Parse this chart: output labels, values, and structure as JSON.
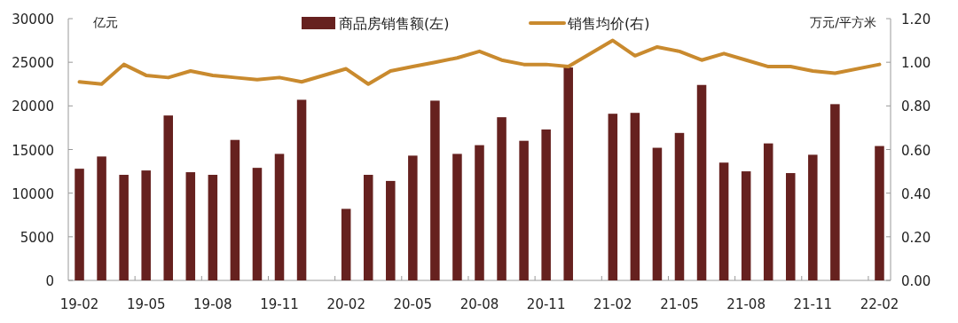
{
  "chart_data": {
    "type": "bar",
    "categories": [
      "19-02",
      null,
      null,
      "19-05",
      null,
      null,
      "19-08",
      null,
      null,
      "19-11",
      null,
      null,
      "20-02",
      null,
      null,
      "20-05",
      null,
      null,
      "20-08",
      null,
      null,
      "20-11",
      null,
      null,
      "21-02",
      null,
      null,
      "21-05",
      null,
      null,
      "21-08",
      null,
      null,
      "21-11",
      null,
      null,
      "22-02"
    ],
    "ylabel": "亿元",
    "y2label": "万元/平方米",
    "ylim": [
      0,
      30000
    ],
    "yticks": [
      0,
      5000,
      10000,
      15000,
      20000,
      25000,
      30000
    ],
    "y2lim": [
      0,
      1.2
    ],
    "y2ticks": [
      {
        "value": 0,
        "label": "0.00"
      },
      {
        "value": 0.2,
        "label": "0.20"
      },
      {
        "value": 0.4,
        "label": "0.40"
      },
      {
        "value": 0.6,
        "label": "0.60"
      },
      {
        "value": 0.8,
        "label": "0.80"
      },
      {
        "value": 1.0,
        "label": "1.00"
      },
      {
        "value": 1.2,
        "label": "1.20"
      }
    ],
    "legend": "top",
    "grid": false,
    "series": [
      {
        "name": "商品房销售额(左)",
        "color": "#66211f",
        "values": [
          12800,
          14200,
          12100,
          12600,
          18900,
          12400,
          12100,
          16100,
          12900,
          14500,
          20700,
          null,
          8200,
          12100,
          11400,
          14300,
          20600,
          14500,
          15500,
          18700,
          16000,
          17300,
          24400,
          null,
          19100,
          19200,
          15200,
          16900,
          22400,
          13500,
          12500,
          15700,
          12300,
          14400,
          20200,
          null,
          15400
        ]
      },
      {
        "name": "销售均价(右)",
        "type": "line",
        "axis": "y2",
        "color": "#c98a2e",
        "values": [
          0.91,
          0.9,
          0.99,
          0.94,
          0.93,
          0.96,
          0.94,
          0.93,
          0.92,
          0.93,
          0.91,
          null,
          0.97,
          0.9,
          0.96,
          0.98,
          1.0,
          1.02,
          1.05,
          1.01,
          0.99,
          0.99,
          0.98,
          null,
          1.1,
          1.03,
          1.07,
          1.05,
          1.01,
          1.04,
          1.01,
          0.98,
          0.98,
          0.96,
          0.95,
          null,
          0.99
        ]
      }
    ]
  }
}
